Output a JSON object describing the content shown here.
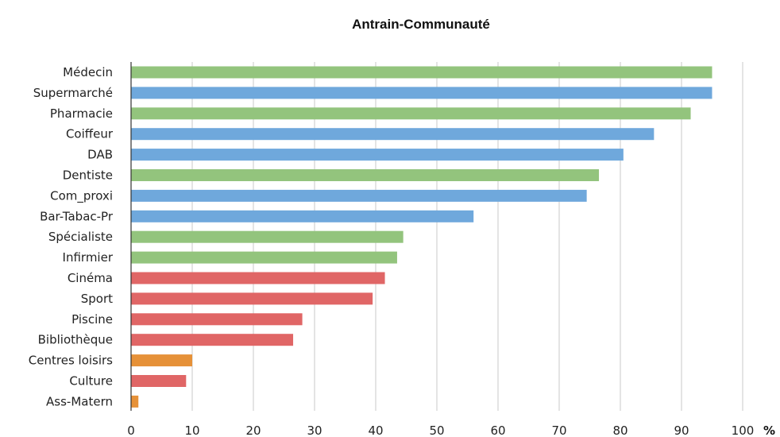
{
  "chart_data": {
    "type": "bar",
    "orientation": "horizontal",
    "title": "Antrain-Communauté",
    "xlabel": "",
    "ylabel": "",
    "x_unit": "%",
    "xlim": [
      0,
      100
    ],
    "x_ticks": [
      0,
      10,
      20,
      30,
      40,
      50,
      60,
      70,
      80,
      90,
      100
    ],
    "grid": "vertical",
    "legend": "none",
    "categories": [
      "Médecin",
      "Supermarché",
      "Pharmacie",
      "Coiffeur",
      "DAB",
      "Dentiste",
      "Com_proxi",
      "Bar-Tabac-Pr",
      "Spécialiste",
      "Infirmier",
      "Cinéma",
      "Sport",
      "Piscine",
      "Bibliothèque",
      "Centres loisirs",
      "Culture",
      "Ass-Matern"
    ],
    "values": [
      95,
      95,
      91.5,
      85.5,
      80.5,
      76.5,
      74.5,
      56,
      44.5,
      43.5,
      41.5,
      39.5,
      28,
      26.5,
      10,
      9,
      1.2
    ],
    "bar_colors": [
      "#93c47d",
      "#6fa8dc",
      "#93c47d",
      "#6fa8dc",
      "#6fa8dc",
      "#93c47d",
      "#6fa8dc",
      "#6fa8dc",
      "#93c47d",
      "#93c47d",
      "#e06666",
      "#e06666",
      "#e06666",
      "#e06666",
      "#e69138",
      "#e06666",
      "#e69138"
    ]
  }
}
